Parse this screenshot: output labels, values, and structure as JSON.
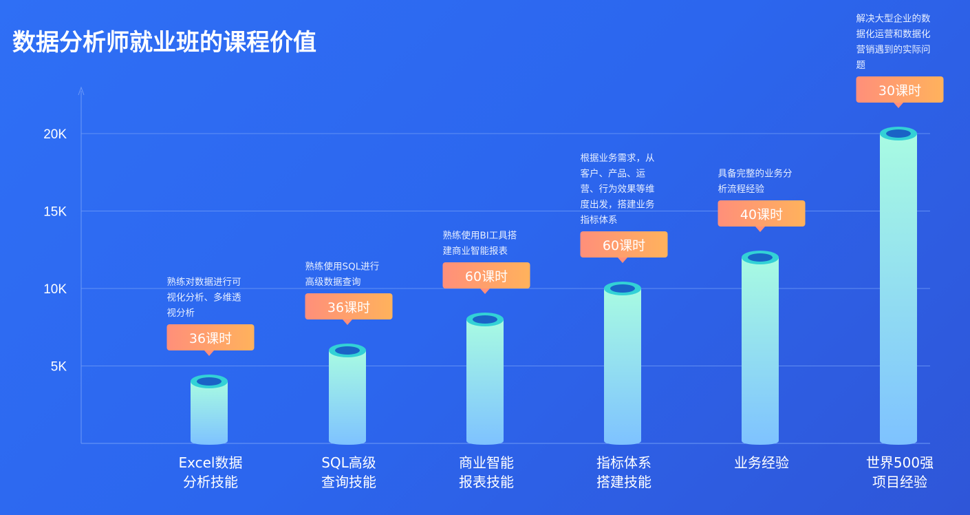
{
  "title": "数据分析师就业班的课程价值",
  "colors": {
    "gridline": "#6f9bf7",
    "cylinder_top": "#a8fbe2",
    "cylinder_bottom": "#7ec2ff",
    "cap_ring": "#33d1d6",
    "cap_hole": "#1a63c6",
    "badge_left": "#ff8f7a",
    "badge_right": "#ffb25c"
  },
  "chart_data": {
    "type": "bar",
    "title": "数据分析师就业班的课程价值",
    "xlabel": "",
    "ylabel": "",
    "ylim": [
      0,
      22000
    ],
    "yticks": [
      {
        "value": 5000,
        "label": "5K"
      },
      {
        "value": 10000,
        "label": "10K"
      },
      {
        "value": 15000,
        "label": "15K"
      },
      {
        "value": 20000,
        "label": "20K"
      }
    ],
    "grid": true,
    "categories": [
      [
        "Excel数据",
        "分析技能"
      ],
      [
        "SQL高级",
        "查询技能"
      ],
      [
        "商业智能",
        "报表技能"
      ],
      [
        "指标体系",
        "搭建技能"
      ],
      [
        "业务经验"
      ],
      [
        "世界500强",
        "项目经验"
      ]
    ],
    "values": [
      4000,
      6000,
      8000,
      10000,
      12000,
      20000
    ],
    "hours": [
      "36课时",
      "36课时",
      "60课时",
      "60课时",
      "40课时",
      "30课时"
    ],
    "descriptions": [
      [
        "熟练对数据进行可",
        "视化分析、多维透",
        "视分析"
      ],
      [
        "熟练使用SQL进行",
        "高级数据查询"
      ],
      [
        "熟练使用BI工具搭",
        "建商业智能报表"
      ],
      [
        "根据业务需求，从",
        "客户、产品、运",
        "营、行为效果等维",
        "度出发，搭建业务",
        "指标体系"
      ],
      [
        "具备完整的业务分",
        "析流程经验"
      ],
      [
        "解决大型企业的数",
        "据化运营和数据化",
        "营销遇到的实际问",
        "题"
      ]
    ]
  }
}
